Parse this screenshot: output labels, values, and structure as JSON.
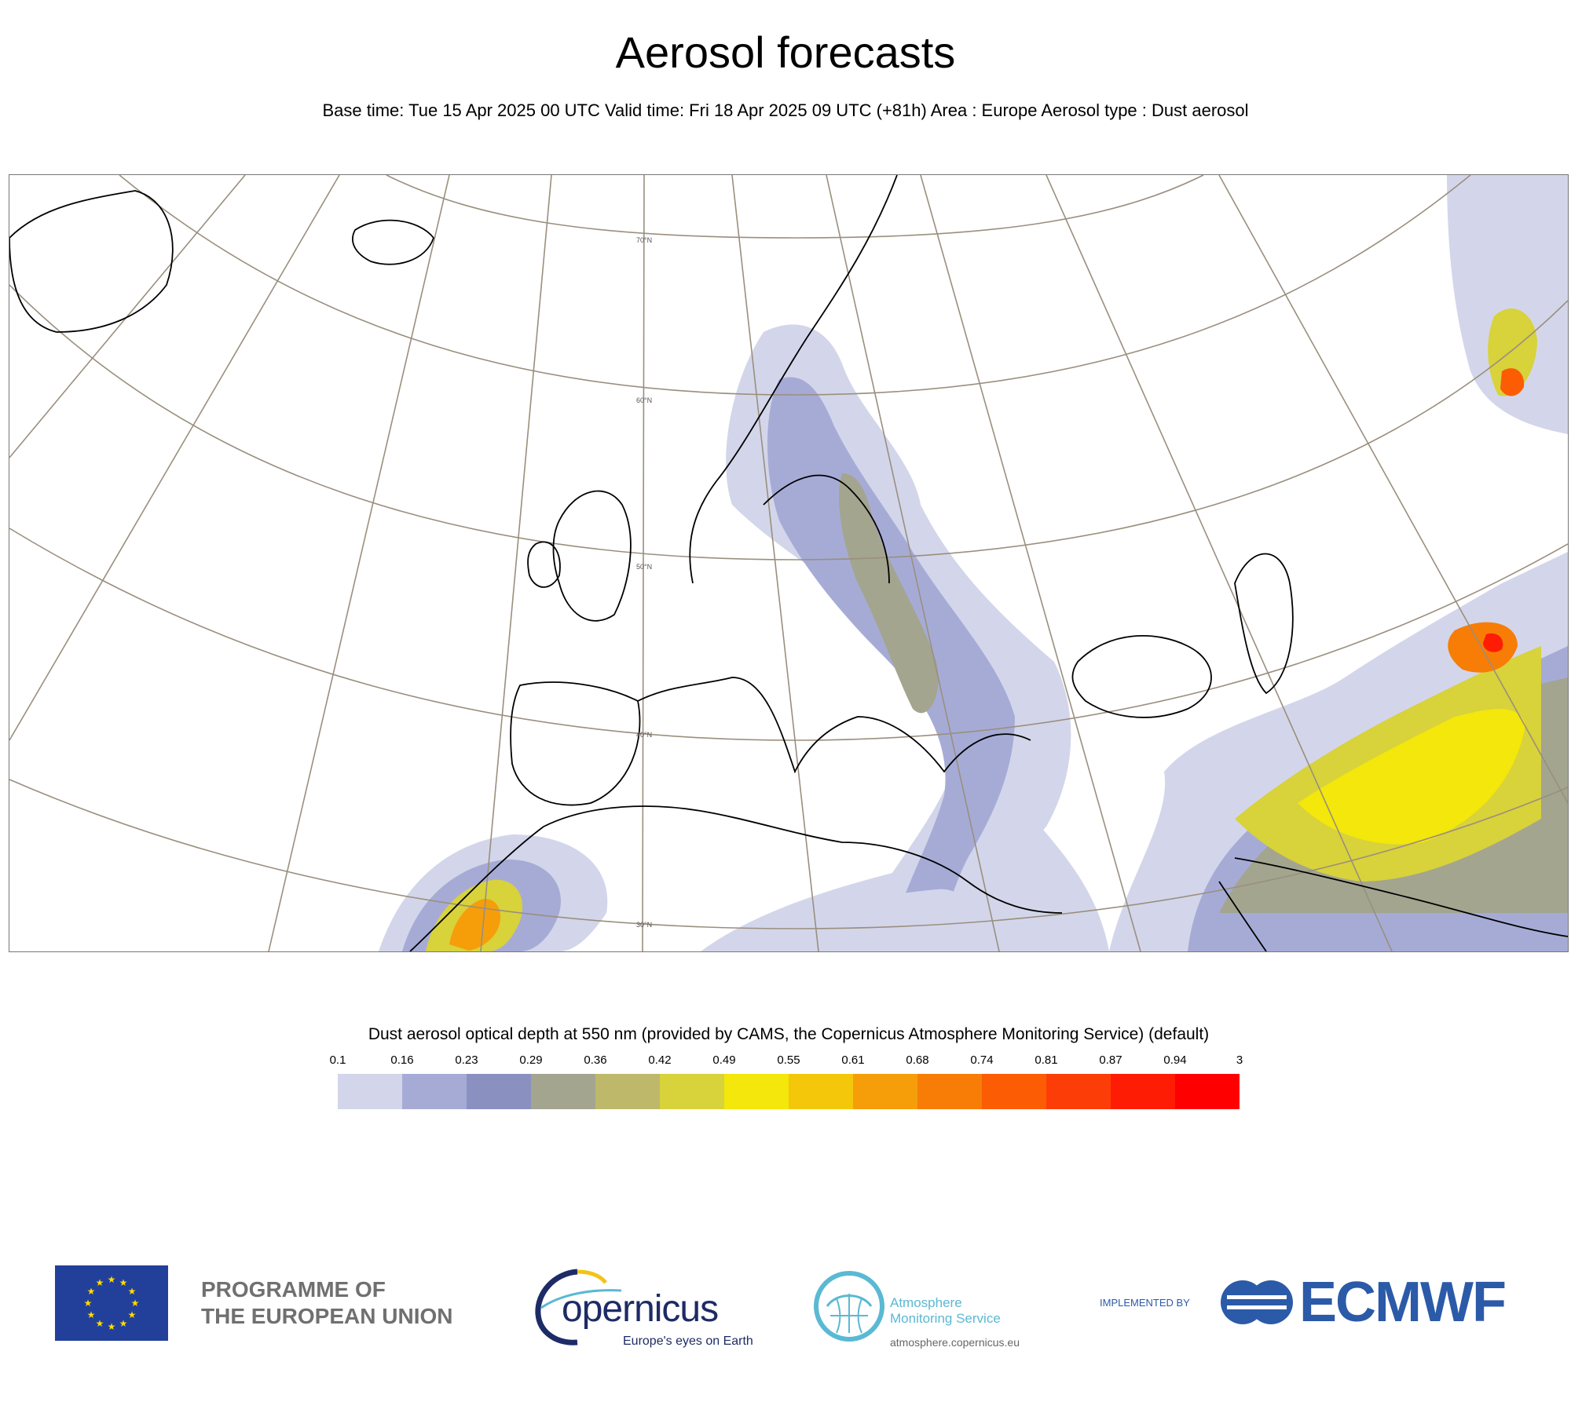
{
  "title": "Aerosol forecasts",
  "subtitle": "Base time: Tue 15 Apr 2025 00 UTC Valid time: Fri 18 Apr 2025 09 UTC (+81h) Area : Europe Aerosol type : Dust aerosol",
  "map": {
    "lat_labels": [
      "70°N",
      "60°N",
      "50°N",
      "40°N",
      "30°N"
    ],
    "land_color": "#ffffff",
    "grid_color": "#9a8f7e",
    "coast_color": "#000000"
  },
  "legend": {
    "title": "Dust aerosol optical depth at 550 nm (provided by CAMS, the Copernicus Atmosphere Monitoring Service) (default)",
    "ticks": [
      "0.1",
      "0.16",
      "0.23",
      "0.29",
      "0.36",
      "0.42",
      "0.49",
      "0.55",
      "0.61",
      "0.68",
      "0.74",
      "0.81",
      "0.87",
      "0.94",
      "3"
    ],
    "colors": [
      "#d3d6ea",
      "#a6abd6",
      "#8a91c0",
      "#a3a58f",
      "#beb96a",
      "#d8d23b",
      "#f3e70b",
      "#f5c70a",
      "#f59e0a",
      "#f77d07",
      "#fb5c04",
      "#fc3d07",
      "#ff1c05",
      "#ff0000"
    ]
  },
  "footer": {
    "eu_text": "PROGRAMME OF\nTHE EUROPEAN UNION",
    "copernicus_word": "opernicus",
    "copernicus_tagline": "Europe's eyes on Earth",
    "cams_name": "Atmosphere\nMonitoring Service",
    "cams_url": "atmosphere.copernicus.eu",
    "implemented_by": "IMPLEMENTED BY",
    "ecmwf": "ECMWF"
  }
}
